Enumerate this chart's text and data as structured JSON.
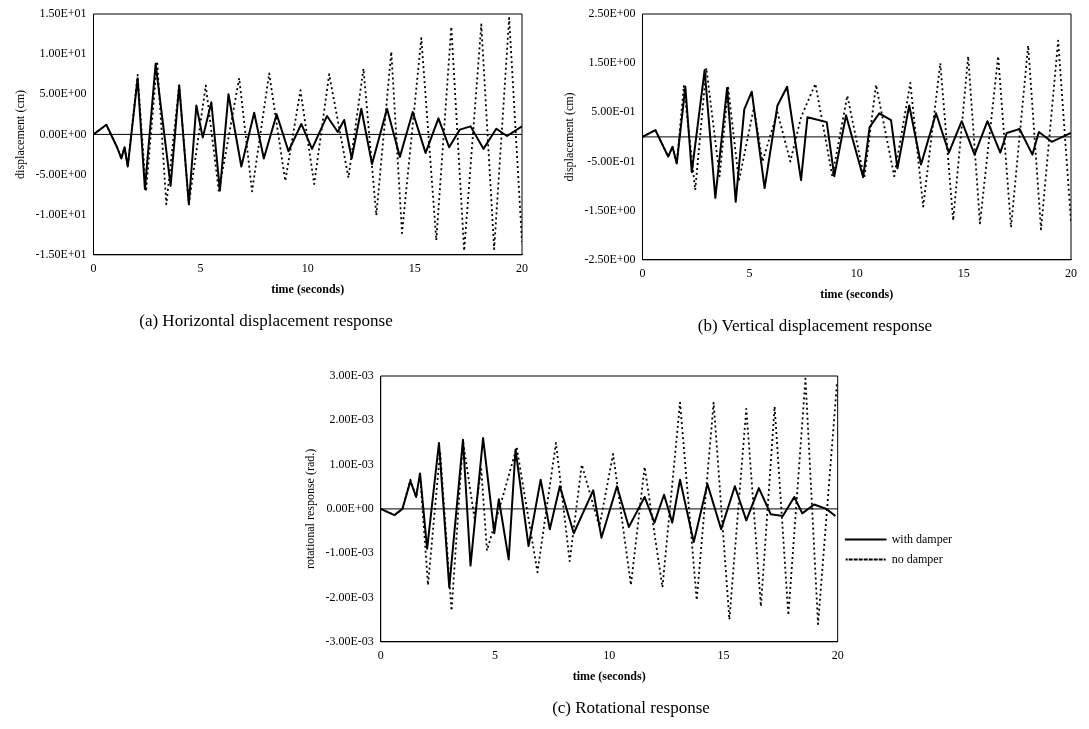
{
  "chart_data": [
    {
      "type": "line",
      "title": "(a) Horizontal displacement response",
      "xlabel": "time (seconds)",
      "ylabel": "displacement (cm)",
      "xlim": [
        0,
        20
      ],
      "xticks": [
        0,
        5,
        10,
        15,
        20
      ],
      "ylim": [
        -15,
        15
      ],
      "yticks": [
        {
          "value": -15,
          "label": "-1.50E+01"
        },
        {
          "value": -10,
          "label": "-1.00E+01"
        },
        {
          "value": -5,
          "label": "-5.00E+00"
        },
        {
          "value": 0,
          "label": "0.00E+00"
        },
        {
          "value": 5,
          "label": "5.00E+00"
        },
        {
          "value": 10,
          "label": "1.00E+01"
        },
        {
          "value": 15,
          "label": "1.50E+01"
        }
      ],
      "legend": false,
      "marker": "none",
      "ref_lines": [
        {
          "axis": "y",
          "value": 0,
          "color": "#000000"
        }
      ],
      "series": [
        {
          "color": "#000000",
          "line_style": "solid",
          "x": [
            0,
            0.6,
            1.1,
            1.3,
            1.45,
            1.6,
            2.06,
            2.4,
            2.9,
            3.6,
            4.0,
            4.45,
            4.8,
            5.1,
            5.5,
            5.9,
            6.3,
            6.9,
            7.5,
            7.95,
            8.55,
            9.1,
            9.7,
            10.2,
            10.9,
            11.4,
            11.7,
            12.05,
            12.5,
            13.0,
            13.7,
            14.3,
            14.9,
            15.5,
            16.1,
            16.6,
            17.1,
            17.6,
            18.2,
            18.8,
            19.3,
            20
          ],
          "values": [
            0,
            1.2,
            -1.6,
            -3,
            -1.6,
            -4,
            7,
            -6.8,
            8.8,
            -6.4,
            6.1,
            -8.7,
            3.6,
            -0.4,
            4,
            -7,
            5,
            -4,
            2.7,
            -3,
            2.5,
            -2.1,
            1.3,
            -1.8,
            2.3,
            0.3,
            1.8,
            -3,
            3.2,
            -3.7,
            3.2,
            -2.8,
            2.8,
            -2.3,
            2,
            -1.6,
            0.6,
            1,
            -1.8,
            0.7,
            -0.2,
            1
          ]
        },
        {
          "color": "#000000",
          "line_style": "dotted",
          "x": [
            0,
            0.6,
            1.1,
            1.3,
            1.45,
            1.6,
            2.06,
            2.45,
            2.97,
            3.4,
            4.0,
            4.45,
            5.24,
            5.85,
            6.8,
            7.4,
            8.2,
            8.95,
            9.66,
            10.3,
            11.0,
            11.9,
            12.6,
            13.2,
            13.9,
            14.4,
            15.3,
            16.0,
            16.7,
            17.3,
            18.1,
            18.7,
            19.4,
            20
          ],
          "values": [
            0,
            1.2,
            -1.6,
            -3,
            -1.6,
            -4,
            7.4,
            -7.1,
            9.1,
            -8.7,
            6.1,
            -8.7,
            6.1,
            -7.1,
            7,
            -7.1,
            7.6,
            -5.8,
            5.5,
            -6.2,
            7.5,
            -5.4,
            8.2,
            -10.1,
            10.3,
            -12.3,
            12,
            -13.2,
            13.4,
            -14.5,
            13.7,
            -14.3,
            14.5,
            -13.4
          ]
        }
      ]
    },
    {
      "type": "line",
      "title": "(b) Vertical displacement response",
      "xlabel": "time (seconds)",
      "ylabel": "displacement (cm)",
      "xlim": [
        0,
        20
      ],
      "xticks": [
        0,
        5,
        10,
        15,
        20
      ],
      "ylim": [
        -2.5,
        2.5
      ],
      "yticks": [
        {
          "value": -2.5,
          "label": "-2.50E+00"
        },
        {
          "value": -1.5,
          "label": "-1.50E+00"
        },
        {
          "value": -0.5,
          "label": "-5.00E-01"
        },
        {
          "value": 0.5,
          "label": "5.00E-01"
        },
        {
          "value": 1.5,
          "label": "1.50E+00"
        },
        {
          "value": 2.5,
          "label": "2.50E+00"
        }
      ],
      "legend": false,
      "marker": "none",
      "ref_lines": [
        {
          "axis": "y",
          "value": 0,
          "color": "#000000"
        }
      ],
      "series": [
        {
          "color": "#000000",
          "line_style": "solid",
          "x": [
            0,
            0.6,
            1.2,
            1.4,
            1.6,
            2.0,
            2.3,
            2.9,
            3.4,
            3.95,
            4.35,
            4.75,
            5.1,
            5.7,
            6.3,
            6.75,
            7.4,
            7.7,
            8.6,
            8.95,
            9.5,
            10.3,
            10.6,
            11.05,
            11.6,
            11.9,
            12.45,
            13.0,
            13.7,
            14.3,
            14.9,
            15.5,
            16.1,
            16.7,
            17.0,
            17.6,
            18.2,
            18.5,
            19.1,
            20
          ],
          "values": [
            0,
            0.14,
            -0.4,
            -0.2,
            -0.54,
            1.02,
            -0.72,
            1.36,
            -1.24,
            1.0,
            -1.32,
            0.56,
            0.92,
            -1.04,
            0.64,
            1.02,
            -0.88,
            0.4,
            0.3,
            -0.8,
            0.44,
            -0.82,
            0.2,
            0.48,
            0.34,
            -0.64,
            0.64,
            -0.56,
            0.48,
            -0.32,
            0.32,
            -0.36,
            0.32,
            -0.32,
            0.08,
            0.16,
            -0.36,
            0.1,
            -0.1,
            0.08
          ]
        },
        {
          "color": "#000000",
          "line_style": "dotted",
          "x": [
            0,
            0.6,
            1.2,
            1.4,
            1.6,
            1.93,
            2.46,
            2.98,
            3.6,
            4.0,
            4.5,
            5.2,
            5.6,
            6.3,
            6.9,
            7.4,
            8.07,
            8.86,
            9.56,
            10.35,
            10.9,
            11.75,
            12.5,
            13.1,
            13.9,
            14.5,
            15.2,
            15.75,
            16.6,
            17.2,
            18.0,
            18.6,
            19.4,
            20
          ],
          "values": [
            0,
            0.14,
            -0.4,
            -0.2,
            -0.54,
            1.04,
            -1.08,
            1.4,
            -0.8,
            1.0,
            -0.9,
            0.6,
            -0.5,
            0.5,
            -0.5,
            0.4,
            1.08,
            -0.8,
            0.84,
            -0.84,
            1.06,
            -0.8,
            1.1,
            -1.42,
            1.5,
            -1.7,
            1.64,
            -1.76,
            1.64,
            -1.84,
            1.86,
            -1.88,
            1.96,
            -1.72
          ]
        }
      ]
    },
    {
      "type": "line",
      "title": "(c) Rotational response",
      "xlabel": "time (seconds)",
      "ylabel": "rotational response (rad.)",
      "xlim": [
        0,
        20
      ],
      "xticks": [
        0,
        5,
        10,
        15,
        20
      ],
      "ylim": [
        -0.003,
        0.003
      ],
      "yticks": [
        {
          "value": -0.003,
          "label": "-3.00E-03"
        },
        {
          "value": -0.002,
          "label": "-2.00E-03"
        },
        {
          "value": -0.001,
          "label": "-1.00E-03"
        },
        {
          "value": 0,
          "label": "0.00E+00"
        },
        {
          "value": 0.001,
          "label": "1.00E-03"
        },
        {
          "value": 0.002,
          "label": "2.00E-03"
        },
        {
          "value": 0.003,
          "label": "3.00E-03"
        }
      ],
      "legend": "right",
      "marker": "none",
      "ref_lines": [
        {
          "axis": "y",
          "value": 0,
          "color": "#000000"
        }
      ],
      "series": [
        {
          "name": "with damper",
          "color": "#000000",
          "line_style": "solid",
          "x": [
            0,
            0.6,
            0.95,
            1.3,
            1.55,
            1.72,
            2.03,
            2.55,
            3.0,
            3.6,
            3.93,
            4.48,
            4.97,
            5.17,
            5.6,
            5.9,
            6.47,
            7.0,
            7.4,
            7.84,
            8.45,
            9.3,
            9.66,
            10.34,
            10.86,
            11.55,
            11.98,
            12.4,
            12.76,
            13.1,
            13.7,
            14.3,
            14.9,
            15.5,
            16.0,
            16.55,
            17.07,
            17.6,
            18.1,
            18.45,
            18.97,
            19.5,
            19.9
          ],
          "values": [
            0,
            -0.00014,
            0,
            0.00063,
            0.00027,
            0.0008,
            -0.0009,
            0.00149,
            -0.00177,
            0.00156,
            -0.00128,
            0.0016,
            -0.00055,
            0.00022,
            -0.00114,
            0.00134,
            -0.00084,
            0.00066,
            -0.00046,
            0.00051,
            -0.00055,
            0.00042,
            -0.00065,
            0.00051,
            -0.00041,
            0.00027,
            -0.00031,
            0.00032,
            -0.00031,
            0.00066,
            -0.00075,
            0.00056,
            -0.00046,
            0.00051,
            -0.00026,
            0.00047,
            -0.00012,
            -0.00016,
            0.00027,
            -0.0001,
            0.0001,
            0,
            -0.00016
          ]
        },
        {
          "name": "no damper",
          "color": "#000000",
          "line_style": "dotted",
          "x": [
            0,
            0.6,
            0.95,
            1.3,
            1.55,
            1.72,
            2.07,
            2.6,
            3.1,
            3.6,
            4.1,
            4.4,
            4.65,
            5.3,
            5.95,
            6.86,
            7.67,
            8.27,
            8.8,
            9.57,
            10.17,
            10.95,
            11.55,
            12.33,
            13.1,
            13.83,
            14.57,
            15.26,
            16.0,
            16.64,
            17.24,
            17.84,
            18.59,
            19.14,
            19.97
          ],
          "values": [
            0,
            -0.00014,
            0,
            0.00066,
            0.00027,
            0.0008,
            -0.00172,
            0.0013,
            -0.0023,
            0.00153,
            -0.0002,
            0.0009,
            -0.00094,
            0.0002,
            0.00139,
            -0.00143,
            0.00149,
            -0.00118,
            0.001,
            -0.0004,
            0.00124,
            -0.00172,
            0.00095,
            -0.00177,
            0.0024,
            -0.00206,
            0.0024,
            -0.0025,
            0.00226,
            -0.0022,
            0.00231,
            -0.0024,
            0.00294,
            -0.0026,
            0.00285
          ]
        }
      ]
    }
  ]
}
